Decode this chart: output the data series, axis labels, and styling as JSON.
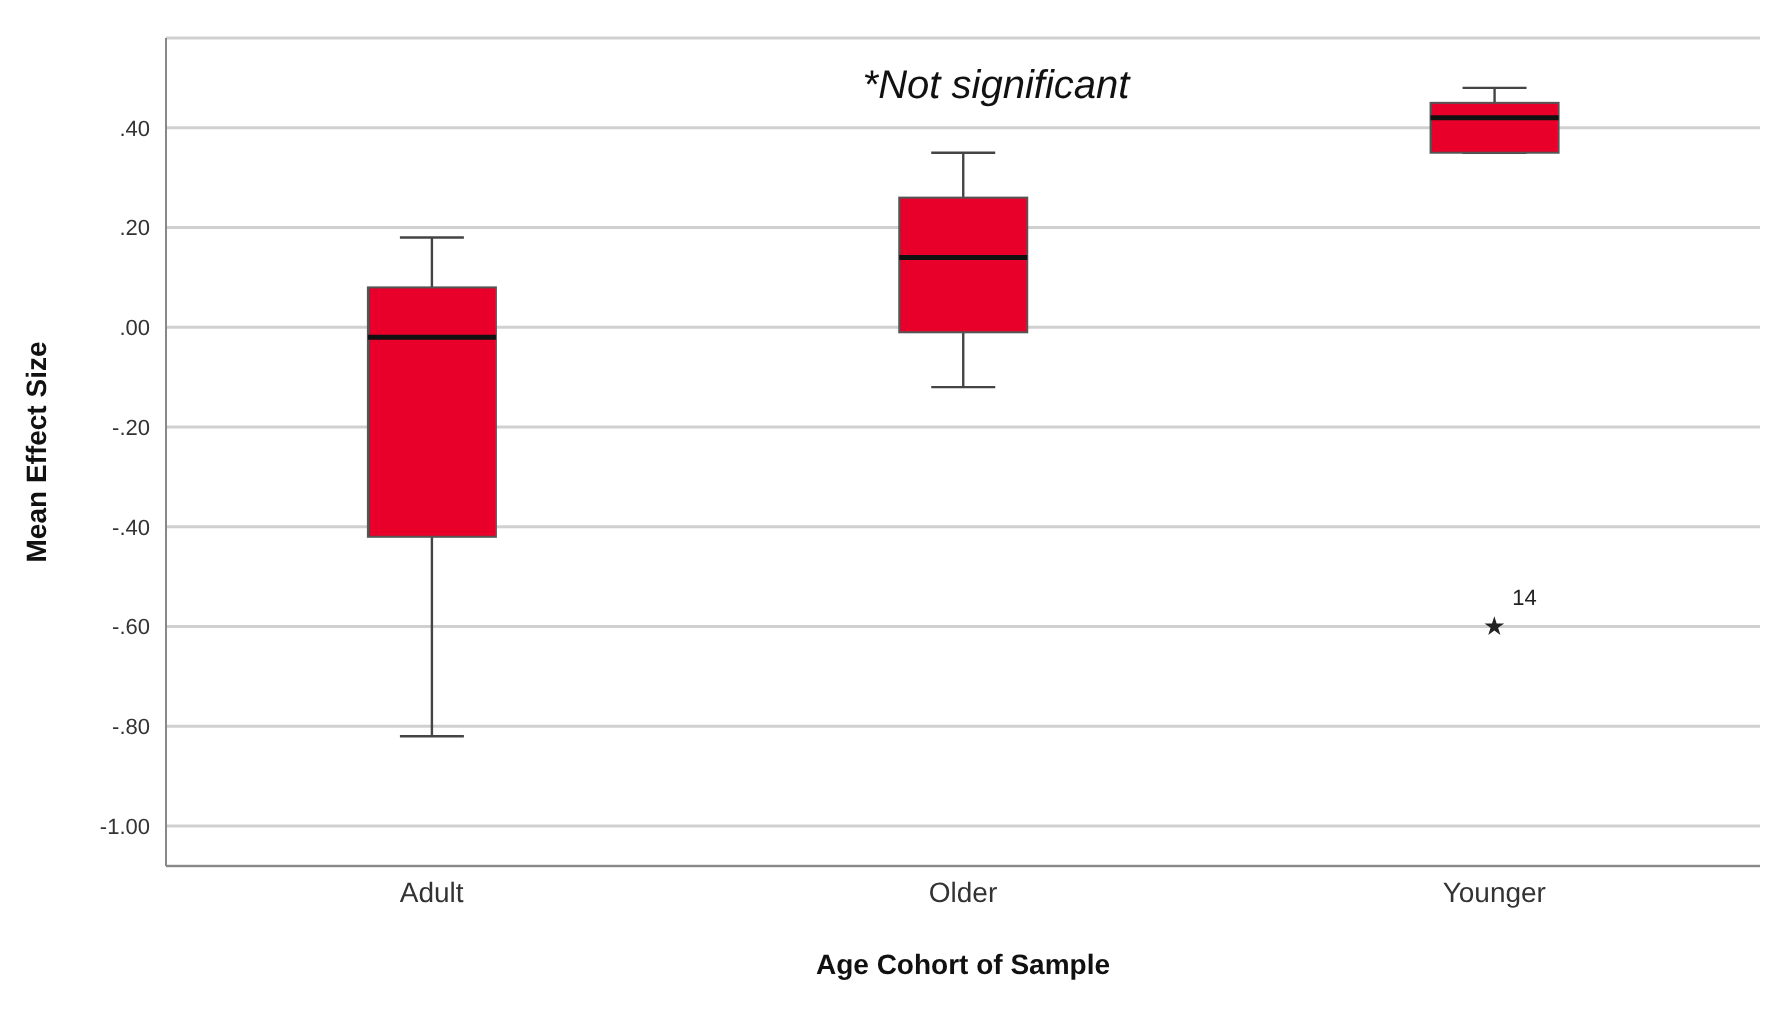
{
  "chart_data": {
    "type": "box",
    "xlabel": "Age Cohort of Sample",
    "ylabel": "Mean Effect Size",
    "categories": [
      "Adult",
      "Older",
      "Younger"
    ],
    "boxes": [
      {
        "low": -0.82,
        "q1": -0.42,
        "median": -0.02,
        "q3": 0.08,
        "high": 0.18
      },
      {
        "low": -0.12,
        "q1": -0.01,
        "median": 0.14,
        "q3": 0.26,
        "high": 0.35
      },
      {
        "low": 0.35,
        "q1": 0.35,
        "median": 0.42,
        "q3": 0.45,
        "high": 0.48,
        "outliers": [
          -0.6
        ]
      }
    ],
    "color": "#e8002a",
    "ylim": [
      -1.08,
      0.58
    ],
    "yticks": [
      {
        "value": -1,
        "label": "-1.00"
      },
      {
        "value": -0.8,
        "label": "-.80"
      },
      {
        "value": -0.6,
        "label": "-.60"
      },
      {
        "value": -0.4,
        "label": "-.40"
      },
      {
        "value": -0.2,
        "label": "-.20"
      },
      {
        "value": 0,
        "label": ".00"
      },
      {
        "value": 0.2,
        "label": ".20"
      },
      {
        "value": 0.4,
        "label": ".40"
      }
    ],
    "grid": "y",
    "marker": "star",
    "annotations": [
      "*Not significant",
      "14"
    ]
  }
}
